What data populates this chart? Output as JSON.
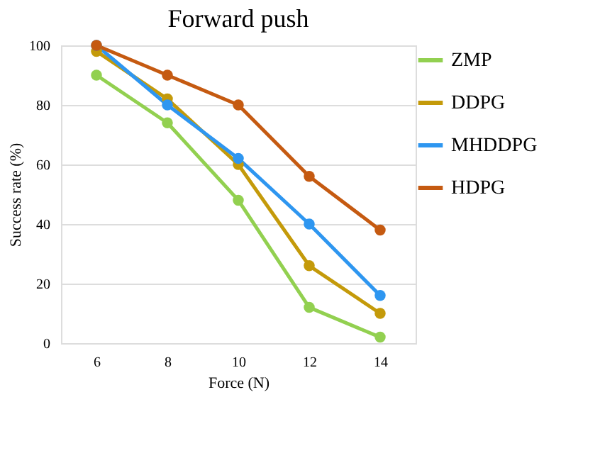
{
  "chart_data": {
    "type": "line",
    "title": "Forward push",
    "xlabel": "Force (N)",
    "ylabel": "Success rate (%)",
    "categories": [
      "6",
      "8",
      "10",
      "12",
      "14"
    ],
    "series": [
      {
        "name": "ZMP",
        "color": "#92d050",
        "values": [
          90,
          74,
          48,
          12,
          2
        ]
      },
      {
        "name": "DDPG",
        "color": "#c49a0a",
        "values": [
          98,
          82,
          60,
          26,
          10
        ]
      },
      {
        "name": "MHDDPG",
        "color": "#2e96f0",
        "values": [
          100,
          80,
          62,
          40,
          16
        ]
      },
      {
        "name": "HDPG",
        "color": "#c55a11",
        "values": [
          100,
          90,
          80,
          56,
          38
        ]
      }
    ],
    "ylim": [
      0,
      100
    ],
    "yticks": [
      0,
      20,
      40,
      60,
      80,
      100
    ],
    "grid": "y",
    "legend": "right",
    "marker": "circle",
    "line_style": "solid"
  }
}
